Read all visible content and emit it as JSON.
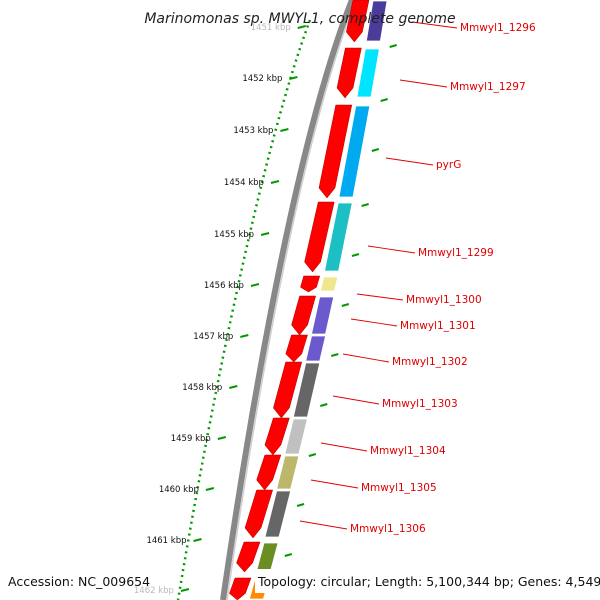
{
  "title": "Marinomonas sp. MWYL1, complete genome",
  "footer": {
    "accession": "Accession: NC_009654",
    "topology": "Topology: circular; Length: 5,100,344 bp; Genes: 4,549"
  },
  "ticks": [
    {
      "label": "1451 kbp",
      "faded": true
    },
    {
      "label": "1452 kbp"
    },
    {
      "label": "1453 kbp"
    },
    {
      "label": "1454 kbp"
    },
    {
      "label": "1455 kbp"
    },
    {
      "label": "1456 kbp"
    },
    {
      "label": "1457 kbp"
    },
    {
      "label": "1458 kbp"
    },
    {
      "label": "1459 kbp"
    },
    {
      "label": "1460 kbp"
    },
    {
      "label": "1461 kbp"
    },
    {
      "label": "1462 kbp",
      "faded": true
    }
  ],
  "genes": [
    {
      "label": "Mmwyl1_1296",
      "color": "#4b3b9a"
    },
    {
      "label": "Mmwyl1_1297",
      "color": "#00e5ff"
    },
    {
      "label": "pyrG",
      "color": "#00aaf0"
    },
    {
      "label": "Mmwyl1_1299",
      "color": "#1bbfc4"
    },
    {
      "label": "Mmwyl1_1300",
      "color": "#f0e68c"
    },
    {
      "label": "Mmwyl1_1301",
      "color": "#6a5acd"
    },
    {
      "label": "Mmwyl1_1302",
      "color": "#6a5acd"
    },
    {
      "label": "Mmwyl1_1303",
      "color": "#666666"
    },
    {
      "label": "Mmwyl1_1304",
      "color": "#c0c0c0"
    },
    {
      "label": "Mmwyl1_1305",
      "color": "#bdb76b"
    },
    {
      "label": "Mmwyl1_1306",
      "color": "#666666"
    },
    {
      "label": "",
      "color": "#6b8e23"
    },
    {
      "label": "",
      "color": "#ff8c00"
    }
  ],
  "colors": {
    "cds": "#ff0000",
    "backbone": "#888888",
    "dotted_ring": "#009900",
    "tick_marks": "#009900",
    "label_line": "#e00000"
  }
}
